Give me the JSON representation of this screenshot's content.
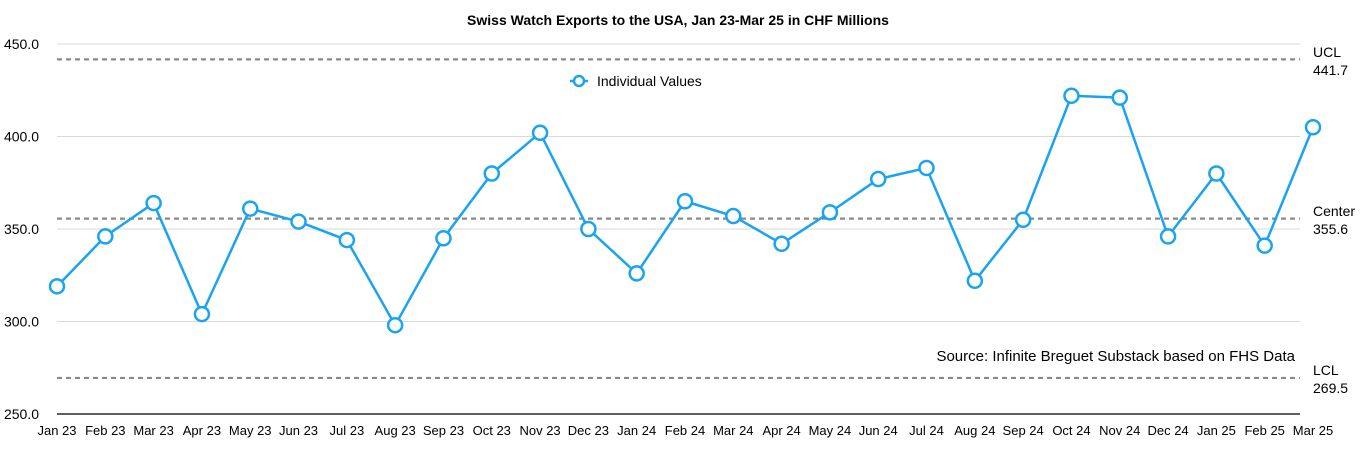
{
  "chart_data": {
    "type": "line",
    "title": "Swiss Watch Exports to the USA, Jan 23-Mar 25 in CHF Millions",
    "xlabel": "",
    "ylabel": "",
    "ylim": [
      250,
      450
    ],
    "yticks": [
      "450.0",
      "400.0",
      "350.0",
      "300.0",
      "250.0"
    ],
    "ytick_values": [
      450,
      400,
      350,
      300,
      250
    ],
    "categories": [
      "Jan 23",
      "Feb 23",
      "Mar 23",
      "Apr 23",
      "May 23",
      "Jun 23",
      "Jul 23",
      "Aug 23",
      "Sep 23",
      "Oct 23",
      "Nov 23",
      "Dec 23",
      "Jan 24",
      "Feb 24",
      "Mar 24",
      "Apr 24",
      "May 24",
      "Jun 24",
      "Jul 24",
      "Aug 24",
      "Sep 24",
      "Oct 24",
      "Nov 24",
      "Dec 24",
      "Jan 25",
      "Feb 25",
      "Mar 25"
    ],
    "series": [
      {
        "name": "Individual Values",
        "color": "#1aa3f0",
        "values": [
          319,
          346,
          364,
          304,
          361,
          354,
          344,
          298,
          345,
          380,
          402,
          350,
          326,
          365,
          357,
          342,
          359,
          377,
          383,
          322,
          355,
          422,
          421,
          346,
          380,
          341,
          405
        ]
      }
    ],
    "control_lines": [
      {
        "key": "ucl",
        "label": "UCL",
        "value_label": "441.7",
        "value": 441.7
      },
      {
        "key": "center",
        "label": "Center",
        "value_label": "355.6",
        "value": 355.6
      },
      {
        "key": "lcl",
        "label": "LCL",
        "value_label": "269.5",
        "value": 269.5
      }
    ],
    "legend": {
      "label": "Individual Values",
      "placement": "top-center"
    },
    "source": "Source: Infinite Breguet Substack based on FHS Data",
    "grid": true,
    "colors": {
      "series": "#1aa3f0",
      "grid": "#d9d9d9",
      "control": "#8a8a8a",
      "axis": "#000000"
    }
  }
}
